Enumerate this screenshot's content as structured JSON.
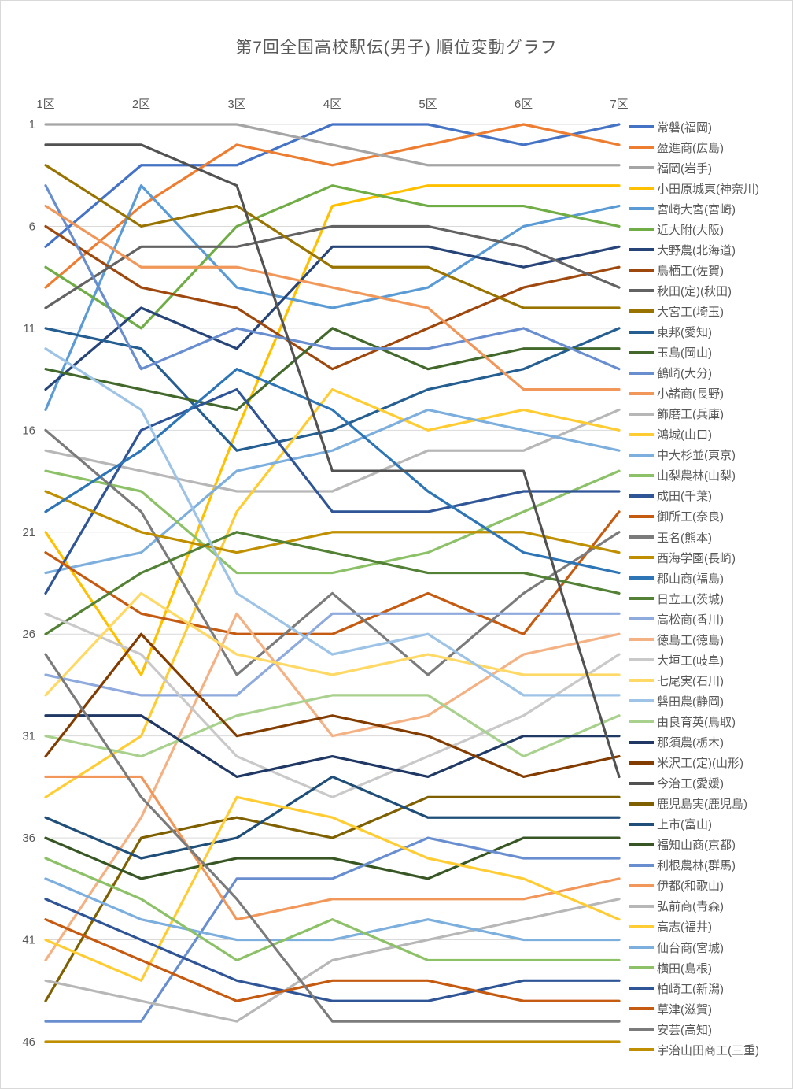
{
  "title": "第7回全国高校駅伝(男子) 順位変動グラフ",
  "chart_data": {
    "type": "line",
    "subtype": "bump-rank-chart",
    "x_categories": [
      "1区",
      "2区",
      "3区",
      "4区",
      "5区",
      "6区",
      "7区"
    ],
    "x_labels_position": "top",
    "y_axis": {
      "label": "順位",
      "ticks": [
        1,
        6,
        11,
        16,
        21,
        26,
        31,
        36,
        41,
        46
      ],
      "min": 1,
      "max": 46,
      "reversed": true
    },
    "grid": true,
    "grid_color": "#d9d9d9",
    "text_color": "#595959",
    "legend_position": "right",
    "series": [
      {
        "name": "常磐(福岡)",
        "color": "#4472C4",
        "ranks": [
          7,
          3,
          3,
          1,
          1,
          2,
          1
        ]
      },
      {
        "name": "盈進商(広島)",
        "color": "#ED7D31",
        "ranks": [
          9,
          5,
          2,
          3,
          2,
          1,
          2
        ]
      },
      {
        "name": "福岡(岩手)",
        "color": "#A5A5A5",
        "ranks": [
          1,
          1,
          1,
          2,
          3,
          3,
          3
        ]
      },
      {
        "name": "小田原城東(神奈川)",
        "color": "#FFC000",
        "ranks": [
          21,
          28,
          16,
          5,
          4,
          4,
          4
        ]
      },
      {
        "name": "宮崎大宮(宮崎)",
        "color": "#5B9BD5",
        "ranks": [
          15,
          4,
          9,
          10,
          9,
          6,
          5
        ]
      },
      {
        "name": "近大附(大阪)",
        "color": "#70AD47",
        "ranks": [
          8,
          11,
          6,
          4,
          5,
          5,
          6
        ]
      },
      {
        "name": "大野農(北海道)",
        "color": "#264478",
        "ranks": [
          14,
          10,
          12,
          7,
          7,
          8,
          7
        ]
      },
      {
        "name": "鳥栖工(佐賀)",
        "color": "#9E480E",
        "ranks": [
          6,
          9,
          10,
          13,
          11,
          9,
          8
        ]
      },
      {
        "name": "秋田(定)(秋田)",
        "color": "#636363",
        "ranks": [
          10,
          7,
          7,
          6,
          6,
          7,
          9
        ]
      },
      {
        "name": "大宮工(埼玉)",
        "color": "#997300",
        "ranks": [
          3,
          6,
          5,
          8,
          8,
          10,
          10
        ]
      },
      {
        "name": "東邦(愛知)",
        "color": "#255E91",
        "ranks": [
          11,
          12,
          17,
          16,
          14,
          13,
          11
        ]
      },
      {
        "name": "玉島(岡山)",
        "color": "#43682B",
        "ranks": [
          13,
          14,
          15,
          11,
          13,
          12,
          12
        ]
      },
      {
        "name": "鶴崎(大分)",
        "color": "#698ED0",
        "ranks": [
          4,
          13,
          11,
          12,
          12,
          11,
          13
        ]
      },
      {
        "name": "小諸商(長野)",
        "color": "#F1975A",
        "ranks": [
          5,
          8,
          8,
          9,
          10,
          14,
          14
        ]
      },
      {
        "name": "飾磨工(兵庫)",
        "color": "#B7B7B7",
        "ranks": [
          17,
          18,
          19,
          19,
          17,
          17,
          15
        ]
      },
      {
        "name": "鴻城(山口)",
        "color": "#FFCD33",
        "ranks": [
          34,
          31,
          20,
          14,
          16,
          15,
          16
        ]
      },
      {
        "name": "中大杉並(東京)",
        "color": "#7CAFDD",
        "ranks": [
          23,
          22,
          18,
          17,
          15,
          16,
          17
        ]
      },
      {
        "name": "山梨農林(山梨)",
        "color": "#8CC168",
        "ranks": [
          18,
          19,
          23,
          23,
          22,
          20,
          18
        ]
      },
      {
        "name": "成田(千葉)",
        "color": "#2F5597",
        "ranks": [
          24,
          16,
          14,
          20,
          20,
          19,
          19
        ]
      },
      {
        "name": "御所工(奈良)",
        "color": "#C55A11",
        "ranks": [
          22,
          25,
          26,
          26,
          24,
          26,
          20
        ]
      },
      {
        "name": "玉名(熊本)",
        "color": "#7B7B7B",
        "ranks": [
          16,
          20,
          28,
          24,
          28,
          24,
          21
        ]
      },
      {
        "name": "西海学園(長崎)",
        "color": "#BF8F00",
        "ranks": [
          19,
          21,
          22,
          21,
          21,
          21,
          22
        ]
      },
      {
        "name": "郡山商(福島)",
        "color": "#2E75B6",
        "ranks": [
          20,
          17,
          13,
          15,
          19,
          22,
          23
        ]
      },
      {
        "name": "日立工(茨城)",
        "color": "#538135",
        "ranks": [
          26,
          23,
          21,
          22,
          23,
          23,
          24
        ]
      },
      {
        "name": "高松商(香川)",
        "color": "#8FAADC",
        "ranks": [
          28,
          29,
          29,
          25,
          25,
          25,
          25
        ]
      },
      {
        "name": "徳島工(徳島)",
        "color": "#F4B183",
        "ranks": [
          42,
          35,
          25,
          31,
          30,
          27,
          26
        ]
      },
      {
        "name": "大垣工(岐阜)",
        "color": "#C9C9C9",
        "ranks": [
          25,
          27,
          32,
          34,
          32,
          30,
          27
        ]
      },
      {
        "name": "七尾実(石川)",
        "color": "#FFD966",
        "ranks": [
          29,
          24,
          27,
          28,
          27,
          28,
          28
        ]
      },
      {
        "name": "磐田農(静岡)",
        "color": "#9DC3E6",
        "ranks": [
          12,
          15,
          24,
          27,
          26,
          29,
          29
        ]
      },
      {
        "name": "由良育英(鳥取)",
        "color": "#A9D18E",
        "ranks": [
          31,
          32,
          30,
          29,
          29,
          32,
          30
        ]
      },
      {
        "name": "那須農(栃木)",
        "color": "#1F3864",
        "ranks": [
          30,
          30,
          33,
          32,
          33,
          31,
          31
        ]
      },
      {
        "name": "米沢工(定)(山形)",
        "color": "#833C00",
        "ranks": [
          32,
          26,
          31,
          30,
          31,
          33,
          32
        ]
      },
      {
        "name": "今治工(愛媛)",
        "color": "#525252",
        "ranks": [
          2,
          2,
          4,
          18,
          18,
          18,
          33
        ]
      },
      {
        "name": "鹿児島実(鹿児島)",
        "color": "#7F6000",
        "ranks": [
          44,
          36,
          35,
          36,
          34,
          34,
          34
        ]
      },
      {
        "name": "上市(富山)",
        "color": "#1F4E79",
        "ranks": [
          35,
          37,
          36,
          33,
          35,
          35,
          35
        ]
      },
      {
        "name": "福知山商(京都)",
        "color": "#375623",
        "ranks": [
          36,
          38,
          37,
          37,
          38,
          36,
          36
        ]
      },
      {
        "name": "利根農林(群馬)",
        "color": "#698ED0",
        "ranks": [
          45,
          45,
          38,
          38,
          36,
          37,
          37
        ]
      },
      {
        "name": "伊都(和歌山)",
        "color": "#F1975A",
        "ranks": [
          33,
          33,
          40,
          39,
          39,
          39,
          38
        ]
      },
      {
        "name": "弘前商(青森)",
        "color": "#B7B7B7",
        "ranks": [
          43,
          44,
          45,
          42,
          41,
          40,
          39
        ]
      },
      {
        "name": "高志(福井)",
        "color": "#FFCD33",
        "ranks": [
          41,
          43,
          34,
          35,
          37,
          38,
          40
        ]
      },
      {
        "name": "仙台商(宮城)",
        "color": "#7CAFDD",
        "ranks": [
          38,
          40,
          41,
          41,
          40,
          41,
          41
        ]
      },
      {
        "name": "横田(島根)",
        "color": "#8CC168",
        "ranks": [
          37,
          39,
          42,
          40,
          42,
          42,
          42
        ]
      },
      {
        "name": "柏崎工(新潟)",
        "color": "#2F5597",
        "ranks": [
          39,
          41,
          43,
          44,
          44,
          43,
          43
        ]
      },
      {
        "name": "草津(滋賀)",
        "color": "#C55A11",
        "ranks": [
          40,
          42,
          44,
          43,
          43,
          44,
          44
        ]
      },
      {
        "name": "安芸(高知)",
        "color": "#7B7B7B",
        "ranks": [
          27,
          34,
          39,
          45,
          45,
          45,
          45
        ]
      },
      {
        "name": "宇治山田商工(三重)",
        "color": "#BF8F00",
        "ranks": [
          46,
          46,
          46,
          46,
          46,
          46,
          46
        ]
      }
    ]
  }
}
